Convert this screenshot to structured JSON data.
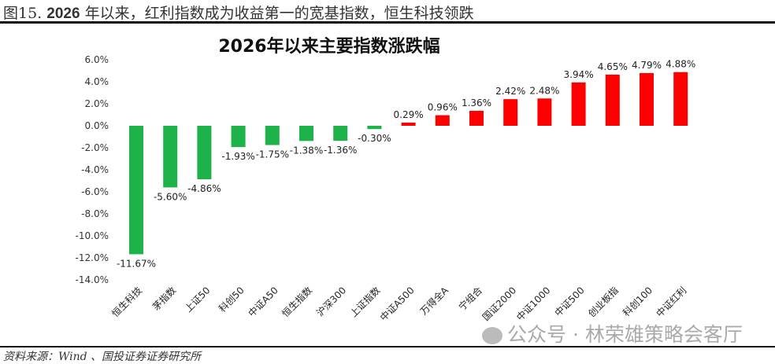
{
  "figure_title_prefix": "图15. ",
  "figure_title_year": "2026",
  "figure_title_rest": " 年以来，红利指数成为收益第一的宽基指数，恒生科技领跌",
  "source": "资料来源：Wind 、国投证券证券研究所",
  "watermark": "公众号 · 林荣雄策略会客厅",
  "chart_data": {
    "type": "bar",
    "title": "2026年以来主要指数涨跌幅",
    "categories": [
      "恒生科技",
      "茅指数",
      "上证50",
      "科创50",
      "中证A50",
      "恒生指数",
      "沪深300",
      "上证指数",
      "中证A500",
      "万得全A",
      "宁组合",
      "国证2000",
      "中证1000",
      "中证500",
      "创业板指",
      "科创100",
      "中证红利"
    ],
    "values": [
      -11.67,
      -5.6,
      -4.86,
      -1.93,
      -1.75,
      -1.38,
      -1.36,
      -0.3,
      0.29,
      0.96,
      1.36,
      2.42,
      2.48,
      3.94,
      4.65,
      4.79,
      4.88
    ],
    "data_labels": [
      "-11.67%",
      "-5.60%",
      "-4.86%",
      "-1.93%",
      "-1.75%",
      "-1.38%",
      "-1.36%",
      "-0.30%",
      "0.29%",
      "0.96%",
      "1.36%",
      "2.42%",
      "2.48%",
      "3.94%",
      "4.65%",
      "4.79%",
      "4.88%"
    ],
    "ylim": [
      -14,
      6
    ],
    "yticks": [
      "6.0%",
      "4.0%",
      "2.0%",
      "0.0%",
      "-2.0%",
      "-4.0%",
      "-6.0%",
      "-8.0%",
      "-10.0%",
      "-12.0%",
      "-14.0%"
    ],
    "grid": false,
    "colors": {
      "positive": "#ff0000",
      "negative": "#1db34a"
    }
  }
}
